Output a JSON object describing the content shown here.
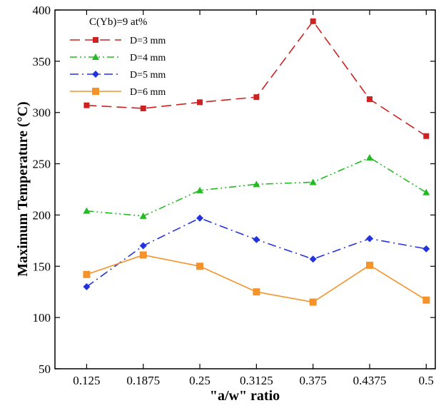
{
  "chart_data": {
    "type": "line",
    "title": "",
    "xlabel": "\"a/w\" ratio",
    "ylabel": "Maximum Temperature (°C)",
    "categories": [
      "0.125",
      "0.1875",
      "0.25",
      "0.3125",
      "0.375",
      "0.4375",
      "0.5"
    ],
    "x": [
      0.125,
      0.1875,
      0.25,
      0.3125,
      0.375,
      0.4375,
      0.5
    ],
    "xlim": [
      0.09,
      0.51
    ],
    "ylim": [
      50,
      400
    ],
    "yticks": [
      50,
      100,
      150,
      200,
      250,
      300,
      350,
      400
    ],
    "grid": false,
    "legend": {
      "title": "C(Yb)=9 at%",
      "placement": "top-left"
    },
    "series": [
      {
        "name": "D=3 mm",
        "color": "#cc2222",
        "dash": "dashed",
        "marker": "square",
        "values": [
          307,
          304,
          310,
          315,
          389,
          313,
          277
        ]
      },
      {
        "name": "D=4 mm",
        "color": "#22bb22",
        "dash": "dash-dot-dot",
        "marker": "triangle",
        "values": [
          204,
          199,
          224,
          230,
          232,
          256,
          222
        ]
      },
      {
        "name": "D=5 mm",
        "color": "#2233dd",
        "dash": "dash-dot",
        "marker": "diamond",
        "values": [
          130,
          170,
          197,
          176,
          157,
          177,
          167
        ]
      },
      {
        "name": "D=6 mm",
        "color": "#f5922a",
        "dash": "solid",
        "marker": "square-large",
        "values": [
          142,
          161,
          150,
          125,
          115,
          151,
          117
        ]
      }
    ]
  }
}
